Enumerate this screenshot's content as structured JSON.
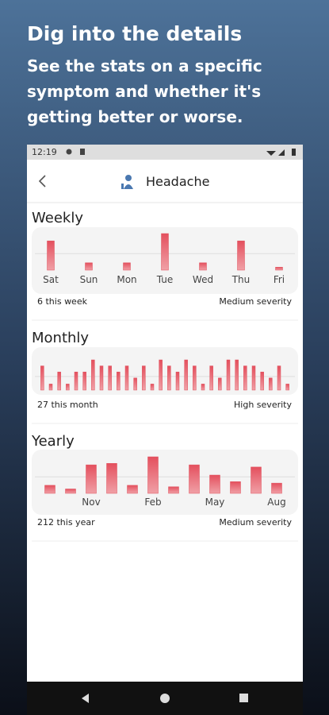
{
  "header": {
    "title": "Dig into the details",
    "subtitle": [
      "See the stats on a specific",
      "symptom and whether it's",
      "getting better or worse."
    ]
  },
  "status_bar": {
    "time": "12:19"
  },
  "app_bar": {
    "title": "Headache"
  },
  "chart_data": [
    {
      "type": "bar",
      "title": "Weekly",
      "categories": [
        "Sat",
        "Sun",
        "Mon",
        "Tue",
        "Wed",
        "Thu",
        "Fri"
      ],
      "values": [
        4,
        1,
        1,
        5,
        1,
        4,
        0.4
      ],
      "ylim": [
        0,
        5
      ],
      "color": "#e0505c",
      "count_label": "6 this week",
      "severity_label": "Medium severity"
    },
    {
      "type": "bar",
      "title": "Monthly",
      "values": [
        4,
        1,
        3,
        1,
        3,
        3,
        5,
        4,
        4,
        3,
        4,
        2,
        4,
        1,
        5,
        4,
        3,
        5,
        4,
        1,
        4,
        2,
        5,
        5,
        4,
        4,
        3,
        2,
        4,
        1
      ],
      "ylim": [
        0,
        5
      ],
      "color": "#e0505c",
      "count_label": "27 this month",
      "severity_label": "High severity"
    },
    {
      "type": "bar",
      "title": "Yearly",
      "categories": [
        null,
        null,
        "Nov",
        null,
        null,
        "Feb",
        null,
        null,
        "May",
        null,
        null,
        "Aug"
      ],
      "values": [
        1.1,
        0.6,
        3.9,
        4.1,
        1.1,
        5,
        0.9,
        3.9,
        2.5,
        1.6,
        3.6,
        1.4
      ],
      "ylim": [
        0,
        5
      ],
      "color": "#e0505c",
      "count_label": "212 this year",
      "severity_label": "Medium severity"
    }
  ]
}
